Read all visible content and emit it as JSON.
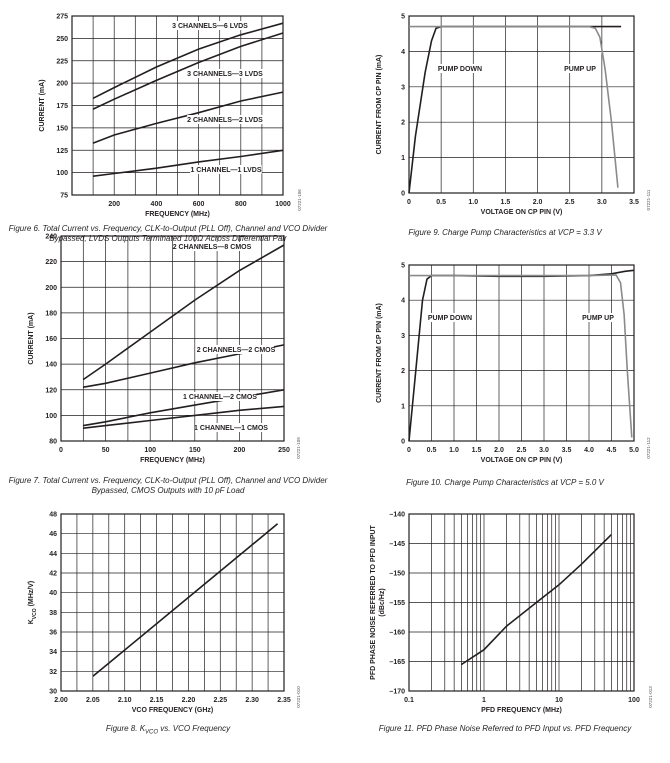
{
  "chart_data": [
    {
      "type": "line",
      "figure_caption": "Figure 6. Total Current vs. Frequency, CLK-to-Output (PLL Off), Channel and VCO Divider Bypassed, LVDS Outputs Terminated 100Ω Across Differential Pair",
      "xlabel": "FREQUENCY (MHz)",
      "ylabel": "CURRENT (mA)",
      "xlim": [
        0,
        1000
      ],
      "ylim": [
        75,
        275
      ],
      "x_ticks": [
        "200",
        "400",
        "600",
        "800",
        "1000"
      ],
      "y_ticks": [
        "75",
        "100",
        "125",
        "150",
        "175",
        "200",
        "225",
        "250",
        "275"
      ],
      "grid": true,
      "code": "07221-106",
      "series": [
        {
          "name": "3 CHANNELS—6 LVDS",
          "x": [
            100,
            200,
            400,
            600,
            800,
            1000
          ],
          "y": [
            183,
            195,
            218,
            238,
            254,
            267
          ]
        },
        {
          "name": "3 CHANNELS—3 LVDS",
          "x": [
            100,
            200,
            400,
            600,
            800,
            1000
          ],
          "y": [
            171,
            182,
            203,
            223,
            241,
            256
          ]
        },
        {
          "name": "2 CHANNELS—2 LVDS",
          "x": [
            100,
            200,
            400,
            600,
            800,
            1000
          ],
          "y": [
            133,
            142,
            155,
            167,
            180,
            190
          ]
        },
        {
          "name": "1 CHANNEL—1 LVDS",
          "x": [
            100,
            200,
            400,
            600,
            800,
            1000
          ],
          "y": [
            96,
            99,
            105,
            112,
            118,
            125
          ]
        }
      ]
    },
    {
      "type": "line",
      "figure_caption": "Figure 7. Total Current vs. Frequency, CLK-to-Output (PLL Off), Channel and VCO Divider Bypassed, CMOS Outputs with 10 pF Load",
      "xlabel": "FREQUENCY (MHz)",
      "ylabel": "CURRENT (mA)",
      "xlim": [
        0,
        250
      ],
      "ylim": [
        80,
        240
      ],
      "x_ticks": [
        "0",
        "50",
        "100",
        "150",
        "200",
        "250"
      ],
      "y_ticks": [
        "80",
        "100",
        "120",
        "140",
        "160",
        "180",
        "200",
        "220",
        "240"
      ],
      "grid": true,
      "code": "07221-109",
      "series": [
        {
          "name": "2 CHANNELS—8 CMOS",
          "x": [
            25,
            50,
            100,
            150,
            200,
            250
          ],
          "y": [
            128,
            140,
            165,
            190,
            213,
            233
          ]
        },
        {
          "name": "2 CHANNELS—2 CMOS",
          "x": [
            25,
            50,
            100,
            150,
            200,
            250
          ],
          "y": [
            122,
            125,
            133,
            141,
            148,
            155
          ]
        },
        {
          "name": "1 CHANNEL—2 CMOS",
          "x": [
            25,
            50,
            100,
            150,
            200,
            250
          ],
          "y": [
            92,
            95,
            102,
            108,
            114,
            120
          ]
        },
        {
          "name": "1 CHANNEL—1 CMOS",
          "x": [
            25,
            50,
            100,
            150,
            200,
            250
          ],
          "y": [
            90,
            92,
            96,
            100,
            104,
            107
          ]
        }
      ]
    },
    {
      "type": "line",
      "figure_caption": "Figure 8. K",
      "caption_sub": "VCO",
      "caption_tail": " vs. VCO Frequency",
      "xlabel": "VCO FREQUENCY (GHz)",
      "ylabel": "K",
      "ylabel_sub": "VCO",
      "ylabel_tail": " (MHz/V)",
      "xlim": [
        2.0,
        2.35
      ],
      "ylim": [
        30,
        48
      ],
      "x_ticks": [
        "2.00",
        "2.05",
        "2.10",
        "2.15",
        "2.20",
        "2.25",
        "2.30",
        "2.35"
      ],
      "y_ticks": [
        "30",
        "32",
        "34",
        "36",
        "38",
        "40",
        "42",
        "44",
        "46",
        "48"
      ],
      "grid": true,
      "code": "07221-010",
      "series": [
        {
          "x": [
            2.05,
            2.34
          ],
          "y": [
            31.5,
            47.0
          ]
        }
      ]
    },
    {
      "type": "line",
      "figure_caption": "Figure 9. Charge Pump Characteristics at VCP = 3.3 V",
      "xlabel": "VOLTAGE ON CP PIN (V)",
      "ylabel": "CURRENT FROM CP PIN (mA)",
      "xlim": [
        0,
        3.5
      ],
      "ylim": [
        0,
        5
      ],
      "x_ticks": [
        "0",
        "0.5",
        "1.0",
        "1.5",
        "2.0",
        "2.5",
        "3.0",
        "3.5"
      ],
      "y_ticks": [
        "0",
        "1",
        "2",
        "3",
        "4",
        "5"
      ],
      "grid": true,
      "code": "07221-111",
      "series": [
        {
          "name": "PUMP DOWN",
          "x": [
            0.0,
            0.1,
            0.25,
            0.35,
            0.42,
            0.5,
            1.0,
            2.0,
            3.0,
            3.3
          ],
          "y": [
            0.0,
            1.6,
            3.4,
            4.3,
            4.65,
            4.7,
            4.7,
            4.7,
            4.7,
            4.7
          ]
        },
        {
          "name": "PUMP UP",
          "x": [
            0.0,
            1.0,
            2.0,
            2.8,
            2.9,
            2.97,
            3.05,
            3.15,
            3.25
          ],
          "y": [
            4.7,
            4.7,
            4.7,
            4.7,
            4.65,
            4.4,
            3.5,
            2.0,
            0.15
          ]
        }
      ]
    },
    {
      "type": "line",
      "figure_caption": "Figure 10. Charge Pump Characteristics at VCP = 5.0 V",
      "xlabel": "VOLTAGE ON CP PIN (V)",
      "ylabel": "CURRENT FROM CP PIN (mA)",
      "xlim": [
        0,
        5.0
      ],
      "ylim": [
        0,
        5
      ],
      "x_ticks": [
        "0",
        "0.5",
        "1.0",
        "1.5",
        "2.0",
        "2.5",
        "3.0",
        "3.5",
        "4.0",
        "4.5",
        "5.0"
      ],
      "y_ticks": [
        "0",
        "1",
        "2",
        "3",
        "4",
        "5"
      ],
      "grid": true,
      "code": "07221-112",
      "series": [
        {
          "name": "PUMP DOWN",
          "x": [
            0.0,
            0.15,
            0.3,
            0.4,
            0.5,
            1.0,
            2.0,
            3.0,
            4.0,
            4.5,
            4.8,
            5.0
          ],
          "y": [
            0.0,
            2.0,
            4.0,
            4.6,
            4.7,
            4.7,
            4.68,
            4.68,
            4.7,
            4.75,
            4.82,
            4.85
          ]
        },
        {
          "name": "PUMP UP",
          "x": [
            0.0,
            1.0,
            2.0,
            3.0,
            4.0,
            4.6,
            4.7,
            4.78,
            4.85,
            4.95
          ],
          "y": [
            4.7,
            4.7,
            4.7,
            4.7,
            4.7,
            4.72,
            4.5,
            3.6,
            2.0,
            0.1
          ]
        }
      ]
    },
    {
      "type": "line",
      "figure_caption": "Figure 11. PFD Phase Noise Referred to PFD Input vs. PFD Frequency",
      "xlabel": "PFD FREQUENCY (MHz)",
      "ylabel": "PFD PHASE NOISE REFERRED TO PFD INPUT",
      "ylabel2": "(dBc/Hz)",
      "xscale": "log",
      "xlim": [
        0.1,
        100
      ],
      "ylim": [
        -170,
        -140
      ],
      "x_ticks": [
        "0.1",
        "1",
        "10",
        "100"
      ],
      "y_ticks": [
        "–140",
        "–145",
        "–150",
        "–155",
        "–160",
        "–165",
        "–170"
      ],
      "grid": true,
      "code": "07221-013",
      "series": [
        {
          "x": [
            0.5,
            1,
            2,
            5,
            10,
            20,
            50
          ],
          "y": [
            -165.5,
            -163.0,
            -159.0,
            -155.0,
            -152.0,
            -148.5,
            -143.5
          ]
        }
      ]
    }
  ]
}
